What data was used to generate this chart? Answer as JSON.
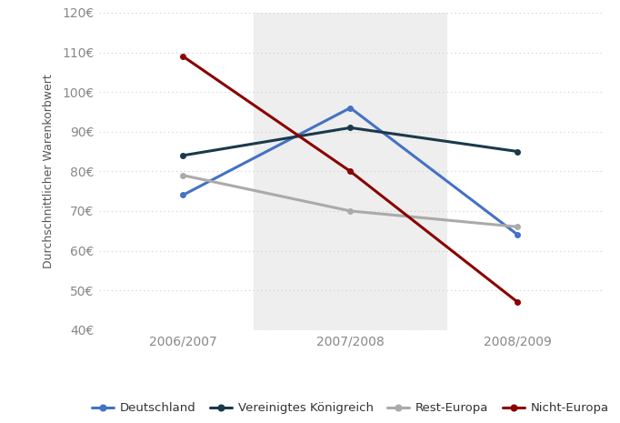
{
  "x_labels": [
    "2006/2007",
    "2007/2008",
    "2008/2009"
  ],
  "x_values": [
    0,
    1,
    2
  ],
  "series": {
    "Deutschland": {
      "values": [
        74,
        96,
        64
      ],
      "color": "#4472C4"
    },
    "Vereinigtes Königreich": {
      "values": [
        84,
        91,
        85
      ],
      "color": "#1A3A4A"
    },
    "Rest-Europa": {
      "values": [
        79,
        70,
        66
      ],
      "color": "#AAAAAA"
    },
    "Nicht-Europa": {
      "values": [
        109,
        80,
        47
      ],
      "color": "#8B0000"
    }
  },
  "ylabel": "Durchschnittlicher Warenkorbwert",
  "ylim": [
    40,
    120
  ],
  "yticks": [
    40,
    50,
    60,
    70,
    80,
    90,
    100,
    110,
    120
  ],
  "ytick_labels": [
    "40€",
    "50€",
    "60€",
    "70€",
    "80€",
    "90€",
    "100€",
    "110€",
    "120€"
  ],
  "background_color": "#FFFFFF",
  "shaded_region": [
    0.42,
    1.58
  ],
  "shaded_color": "#EEEEEE",
  "grid_color": "#CCCCCC",
  "legend_order": [
    "Deutschland",
    "Vereinigtes Königreich",
    "Rest-Europa",
    "Nicht-Europa"
  ],
  "tick_color": "#888888",
  "label_color": "#555555"
}
